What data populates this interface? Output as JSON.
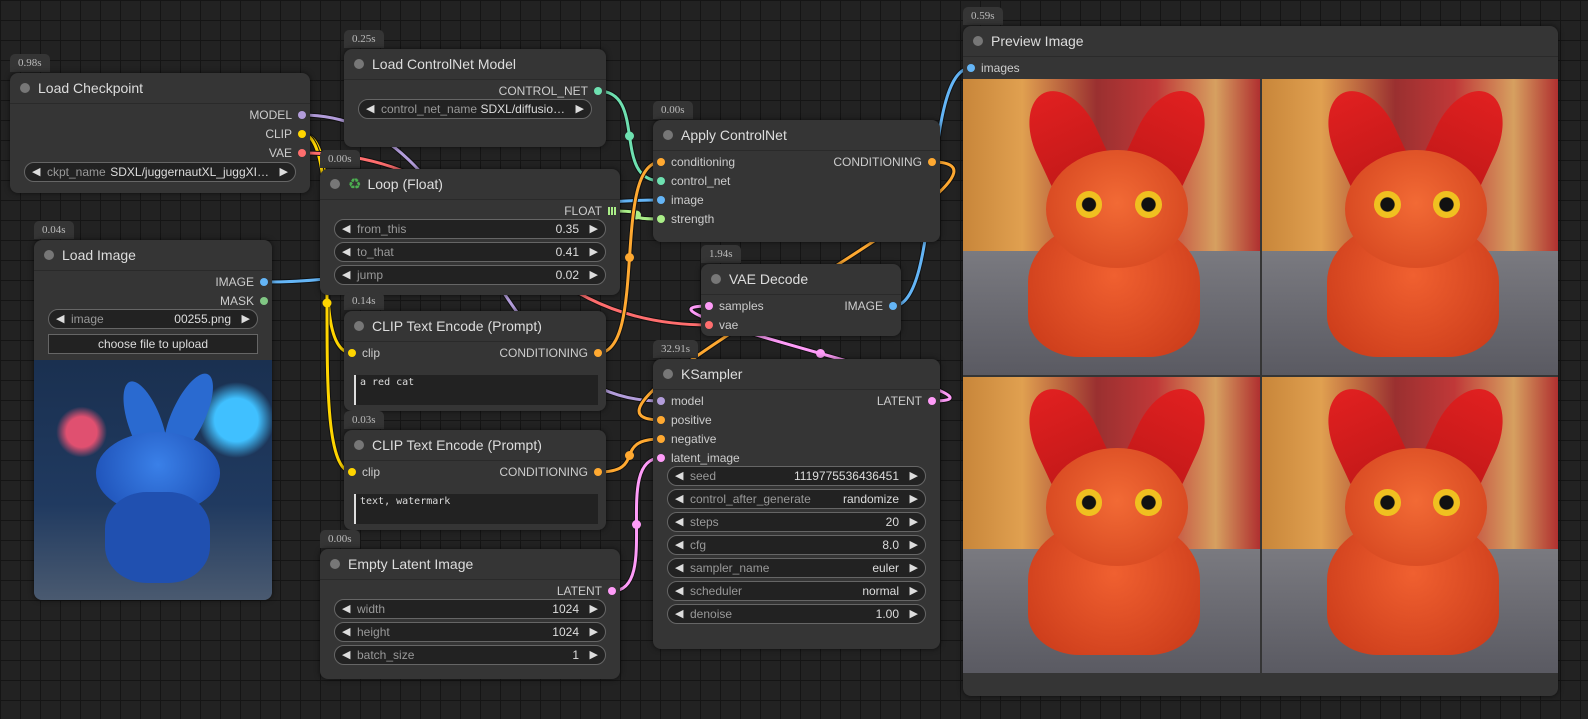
{
  "nodes": [
    {
      "id": "ckpt",
      "title": "Load Checkpoint",
      "time": "0.98s",
      "inputs": [],
      "outputs": [
        {
          "label": "MODEL",
          "color": "#b39ddb"
        },
        {
          "label": "CLIP",
          "color": "#ffd500"
        },
        {
          "label": "VAE",
          "color": "#ff6e6e"
        }
      ],
      "widgets": [
        {
          "name": "ckpt_name",
          "value": "SDXL/juggernautXL_juggXI…"
        }
      ]
    },
    {
      "id": "cnet",
      "title": "Load ControlNet Model",
      "time": "0.25s",
      "inputs": [],
      "outputs": [
        {
          "label": "CONTROL_NET",
          "color": "#6ee0b0"
        }
      ],
      "widgets": [
        {
          "name": "control_net_name",
          "value": "SDXL/diffusio…"
        }
      ]
    },
    {
      "id": "loop",
      "title": "Loop (Float)",
      "icon": "♻",
      "time": "0.00s",
      "inputs": [],
      "outputs": [
        {
          "label": "FLOAT",
          "color": "#aaee88",
          "grid": true
        }
      ],
      "widgets": [
        {
          "name": "from_this",
          "value": "0.35"
        },
        {
          "name": "to_that",
          "value": "0.41"
        },
        {
          "name": "jump",
          "value": "0.02"
        }
      ]
    },
    {
      "id": "loadimg",
      "title": "Load Image",
      "time": "0.04s",
      "inputs": [],
      "outputs": [
        {
          "label": "IMAGE",
          "color": "#64b5f6"
        },
        {
          "label": "MASK",
          "color": "#81c784"
        }
      ],
      "widgets": [
        {
          "name": "image",
          "value": "00255.png"
        }
      ],
      "button": "choose file to upload"
    },
    {
      "id": "clip1",
      "title": "CLIP Text Encode (Prompt)",
      "time": "0.14s",
      "inputs": [
        {
          "label": "clip",
          "color": "#ffd500"
        }
      ],
      "outputs": [
        {
          "label": "CONDITIONING",
          "color": "#ffa931"
        }
      ],
      "widgets": [],
      "text": "a red cat"
    },
    {
      "id": "clip2",
      "title": "CLIP Text Encode (Prompt)",
      "time": "0.03s",
      "inputs": [
        {
          "label": "clip",
          "color": "#ffd500"
        }
      ],
      "outputs": [
        {
          "label": "CONDITIONING",
          "color": "#ffa931"
        }
      ],
      "widgets": [],
      "text": "text, watermark"
    },
    {
      "id": "latent",
      "title": "Empty Latent Image",
      "time": "0.00s",
      "inputs": [],
      "outputs": [
        {
          "label": "LATENT",
          "color": "#ff9cf9"
        }
      ],
      "widgets": [
        {
          "name": "width",
          "value": "1024"
        },
        {
          "name": "height",
          "value": "1024"
        },
        {
          "name": "batch_size",
          "value": "1"
        }
      ]
    },
    {
      "id": "apply",
      "title": "Apply ControlNet",
      "time": "0.00s",
      "inputs": [
        {
          "label": "conditioning",
          "color": "#ffa931"
        },
        {
          "label": "control_net",
          "color": "#6ee0b0"
        },
        {
          "label": "image",
          "color": "#64b5f6"
        },
        {
          "label": "strength",
          "color": "#aaee88"
        }
      ],
      "outputs": [
        {
          "label": "CONDITIONING",
          "color": "#ffa931"
        }
      ],
      "widgets": []
    },
    {
      "id": "vae",
      "title": "VAE Decode",
      "time": "1.94s",
      "inputs": [
        {
          "label": "samples",
          "color": "#ff9cf9"
        },
        {
          "label": "vae",
          "color": "#ff6e6e"
        }
      ],
      "outputs": [
        {
          "label": "IMAGE",
          "color": "#64b5f6"
        }
      ],
      "widgets": []
    },
    {
      "id": "ksampler",
      "title": "KSampler",
      "time": "32.91s",
      "inputs": [
        {
          "label": "model",
          "color": "#b39ddb"
        },
        {
          "label": "positive",
          "color": "#ffa931"
        },
        {
          "label": "negative",
          "color": "#ffa931"
        },
        {
          "label": "latent_image",
          "color": "#ff9cf9"
        }
      ],
      "outputs": [
        {
          "label": "LATENT",
          "color": "#ff9cf9"
        }
      ],
      "widgets": [
        {
          "name": "seed",
          "value": "1119775536436451"
        },
        {
          "name": "control_after_generate",
          "value": "randomize"
        },
        {
          "name": "steps",
          "value": "20"
        },
        {
          "name": "cfg",
          "value": "8.0"
        },
        {
          "name": "sampler_name",
          "value": "euler"
        },
        {
          "name": "scheduler",
          "value": "normal"
        },
        {
          "name": "denoise",
          "value": "1.00"
        }
      ]
    },
    {
      "id": "preview",
      "title": "Preview Image",
      "time": "0.59s",
      "inputs": [
        {
          "label": "images",
          "color": "#64b5f6"
        }
      ],
      "outputs": [],
      "widgets": [],
      "preview_count": 4
    }
  ]
}
